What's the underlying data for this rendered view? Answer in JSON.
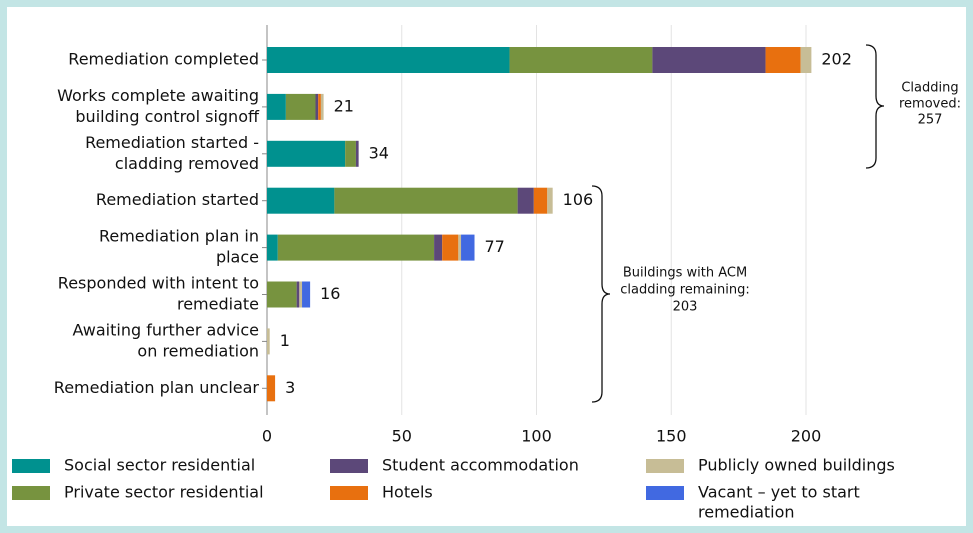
{
  "chart_data": {
    "type": "stacked-barh",
    "categories": [
      [
        "Remediation completed"
      ],
      [
        "Works complete awaiting",
        "building control signoff"
      ],
      [
        "Remediation started -",
        "cladding removed"
      ],
      [
        "Remediation started"
      ],
      [
        "Remediation plan in",
        "place"
      ],
      [
        "Responded with intent to",
        "remediate"
      ],
      [
        "Awaiting further advice",
        "on remediation"
      ],
      [
        "Remediation plan unclear"
      ]
    ],
    "series": [
      {
        "name": [
          "Social sector residential"
        ],
        "color": "#00918f",
        "values": [
          90,
          7,
          29,
          25,
          4,
          0,
          0,
          0
        ]
      },
      {
        "name": [
          "Private sector residential"
        ],
        "color": "#77933f",
        "values": [
          53,
          11,
          4,
          68,
          58,
          11,
          0,
          0
        ]
      },
      {
        "name": [
          "Student accommodation"
        ],
        "color": "#5c4879",
        "values": [
          42,
          1,
          1,
          6,
          3,
          1,
          0,
          0
        ]
      },
      {
        "name": [
          "Hotels"
        ],
        "color": "#e8700f",
        "values": [
          13,
          1,
          0,
          5,
          6,
          0,
          0,
          3
        ]
      },
      {
        "name": [
          "Publicly owned buildings"
        ],
        "color": "#c7bd96",
        "values": [
          4,
          1,
          0,
          2,
          1,
          1,
          1,
          0
        ]
      },
      {
        "name": [
          "Vacant – yet to start",
          "remediation"
        ],
        "color": "#4169e1",
        "values": [
          0,
          0,
          0,
          0,
          5,
          3,
          0,
          0
        ]
      }
    ],
    "totals": [
      202,
      21,
      34,
      106,
      77,
      16,
      1,
      3
    ],
    "annotations": [
      {
        "lines": [
          "Cladding",
          "removed:",
          "257"
        ]
      },
      {
        "lines": [
          "Buildings with ACM",
          "cladding remaining:",
          "203"
        ]
      }
    ],
    "xlim": [
      0,
      200
    ],
    "xticks": [
      0,
      50,
      100,
      150,
      200
    ],
    "grid": true
  }
}
